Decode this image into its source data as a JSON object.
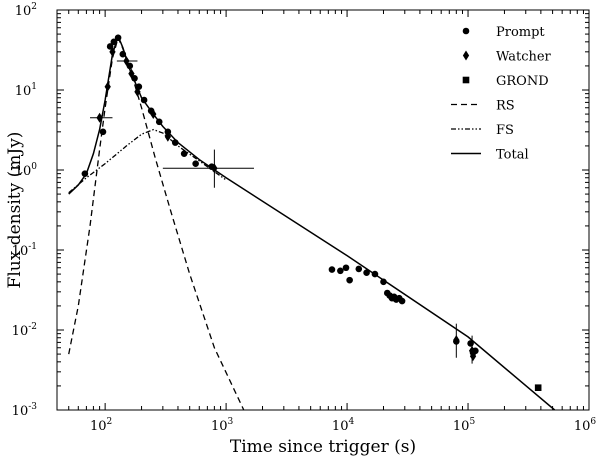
{
  "chart_data": {
    "type": "scatter",
    "title": "",
    "xlabel": "Time since trigger (s)",
    "ylabel": "Flux density (mJy)",
    "x_scale": "log",
    "y_scale": "log",
    "xlim": [
      40,
      1000000
    ],
    "ylim": [
      0.001,
      100
    ],
    "x_ticks": [
      {
        "value": 100,
        "base": "10",
        "exp": "2"
      },
      {
        "value": 1000,
        "base": "10",
        "exp": "3"
      },
      {
        "value": 10000,
        "base": "10",
        "exp": "4"
      },
      {
        "value": 100000,
        "base": "10",
        "exp": "5"
      },
      {
        "value": 1000000,
        "base": "10",
        "exp": "6"
      }
    ],
    "y_ticks": [
      {
        "value": 0.001,
        "base": "10",
        "exp": "-3"
      },
      {
        "value": 0.01,
        "base": "10",
        "exp": "-2"
      },
      {
        "value": 0.1,
        "base": "10",
        "exp": "-1"
      },
      {
        "value": 1,
        "base": "10",
        "exp": "0"
      },
      {
        "value": 10,
        "base": "10",
        "exp": "1"
      },
      {
        "value": 100,
        "base": "10",
        "exp": "2"
      }
    ],
    "legend": {
      "position": "top-right",
      "entries": [
        {
          "label": "Prompt",
          "marker": "circle"
        },
        {
          "label": "Watcher",
          "marker": "diamond"
        },
        {
          "label": "GROND",
          "marker": "square"
        },
        {
          "label": "RS",
          "line": "dashed"
        },
        {
          "label": "FS",
          "line": "dash-dot-dot"
        },
        {
          "label": "Total",
          "line": "solid"
        }
      ]
    },
    "series": [
      {
        "name": "Prompt",
        "marker": "circle",
        "points": [
          {
            "x": 68,
            "y": 0.9
          },
          {
            "x": 96,
            "y": 3.0
          },
          {
            "x": 110,
            "y": 35
          },
          {
            "x": 118,
            "y": 40
          },
          {
            "x": 128,
            "y": 45
          },
          {
            "x": 140,
            "y": 28
          },
          {
            "x": 160,
            "y": 20
          },
          {
            "x": 175,
            "y": 14
          },
          {
            "x": 190,
            "y": 11
          },
          {
            "x": 210,
            "y": 7.5
          },
          {
            "x": 240,
            "y": 5.5
          },
          {
            "x": 280,
            "y": 4.0
          },
          {
            "x": 330,
            "y": 3.0
          },
          {
            "x": 380,
            "y": 2.2
          },
          {
            "x": 450,
            "y": 1.6
          },
          {
            "x": 560,
            "y": 1.2
          },
          {
            "x": 760,
            "y": 1.1
          },
          {
            "x": 7500,
            "y": 0.057
          },
          {
            "x": 8800,
            "y": 0.055
          },
          {
            "x": 9800,
            "y": 0.06
          },
          {
            "x": 10500,
            "y": 0.042
          },
          {
            "x": 12500,
            "y": 0.058
          },
          {
            "x": 14500,
            "y": 0.052
          },
          {
            "x": 17000,
            "y": 0.05
          },
          {
            "x": 20000,
            "y": 0.04
          },
          {
            "x": 21500,
            "y": 0.029
          },
          {
            "x": 22500,
            "y": 0.027
          },
          {
            "x": 23500,
            "y": 0.025
          },
          {
            "x": 24500,
            "y": 0.026
          },
          {
            "x": 25500,
            "y": 0.024
          },
          {
            "x": 27000,
            "y": 0.025
          },
          {
            "x": 28500,
            "y": 0.023
          },
          {
            "x": 80000,
            "y": 0.0072
          },
          {
            "x": 105000,
            "y": 0.0068
          },
          {
            "x": 110000,
            "y": 0.0052
          },
          {
            "x": 115000,
            "y": 0.0055
          }
        ]
      },
      {
        "name": "Watcher",
        "marker": "diamond",
        "points": [
          {
            "x": 90,
            "y": 4.5,
            "xerr": [
              75,
              115
            ]
          },
          {
            "x": 105,
            "y": 11
          },
          {
            "x": 115,
            "y": 30
          },
          {
            "x": 150,
            "y": 23,
            "xerr": [
              125,
              185
            ]
          },
          {
            "x": 165,
            "y": 16
          },
          {
            "x": 185,
            "y": 9.5
          },
          {
            "x": 250,
            "y": 5.0
          },
          {
            "x": 330,
            "y": 2.6
          },
          {
            "x": 800,
            "y": 1.05,
            "xerr": [
              300,
              1700
            ],
            "yerr": [
              0.6,
              1.8
            ]
          },
          {
            "x": 80000,
            "y": 0.0075,
            "yerr": [
              0.0045,
              0.012
            ]
          },
          {
            "x": 108000,
            "y": 0.0055,
            "yerr": [
              0.0038,
              0.0085
            ]
          },
          {
            "x": 110000,
            "y": 0.0047
          }
        ]
      },
      {
        "name": "GROND",
        "marker": "square",
        "points": [
          {
            "x": 380000,
            "y": 0.0019
          }
        ]
      }
    ],
    "model_curves": [
      {
        "name": "RS",
        "line": "dashed",
        "points": [
          [
            50,
            0.005
          ],
          [
            60,
            0.02
          ],
          [
            75,
            0.2
          ],
          [
            90,
            1.8
          ],
          [
            100,
            6
          ],
          [
            115,
            25
          ],
          [
            128,
            45
          ],
          [
            140,
            33
          ],
          [
            165,
            16
          ],
          [
            200,
            6
          ],
          [
            260,
            1.4
          ],
          [
            350,
            0.3
          ],
          [
            500,
            0.05
          ],
          [
            800,
            0.006
          ],
          [
            1400,
            0.001
          ]
        ]
      },
      {
        "name": "FS",
        "line": "dash-dot-dot",
        "points": [
          [
            50,
            0.52
          ],
          [
            70,
            0.8
          ],
          [
            100,
            1.2
          ],
          [
            150,
            2.0
          ],
          [
            200,
            2.8
          ],
          [
            250,
            3.2
          ],
          [
            300,
            2.9
          ],
          [
            400,
            2.0
          ],
          [
            600,
            1.3
          ],
          [
            1000,
            0.75
          ]
        ]
      },
      {
        "name": "Total",
        "line": "solid",
        "points": [
          [
            50,
            0.5
          ],
          [
            60,
            0.65
          ],
          [
            70,
            0.9
          ],
          [
            80,
            1.6
          ],
          [
            90,
            3.2
          ],
          [
            100,
            7.5
          ],
          [
            115,
            28
          ],
          [
            128,
            47
          ],
          [
            140,
            34
          ],
          [
            160,
            18
          ],
          [
            200,
            8
          ],
          [
            250,
            5.0
          ],
          [
            300,
            3.5
          ],
          [
            400,
            2.2
          ],
          [
            600,
            1.35
          ],
          [
            1000,
            0.8
          ],
          [
            10000,
            0.085
          ],
          [
            100000,
            0.0082
          ],
          [
            520000,
            0.001
          ]
        ]
      }
    ]
  }
}
